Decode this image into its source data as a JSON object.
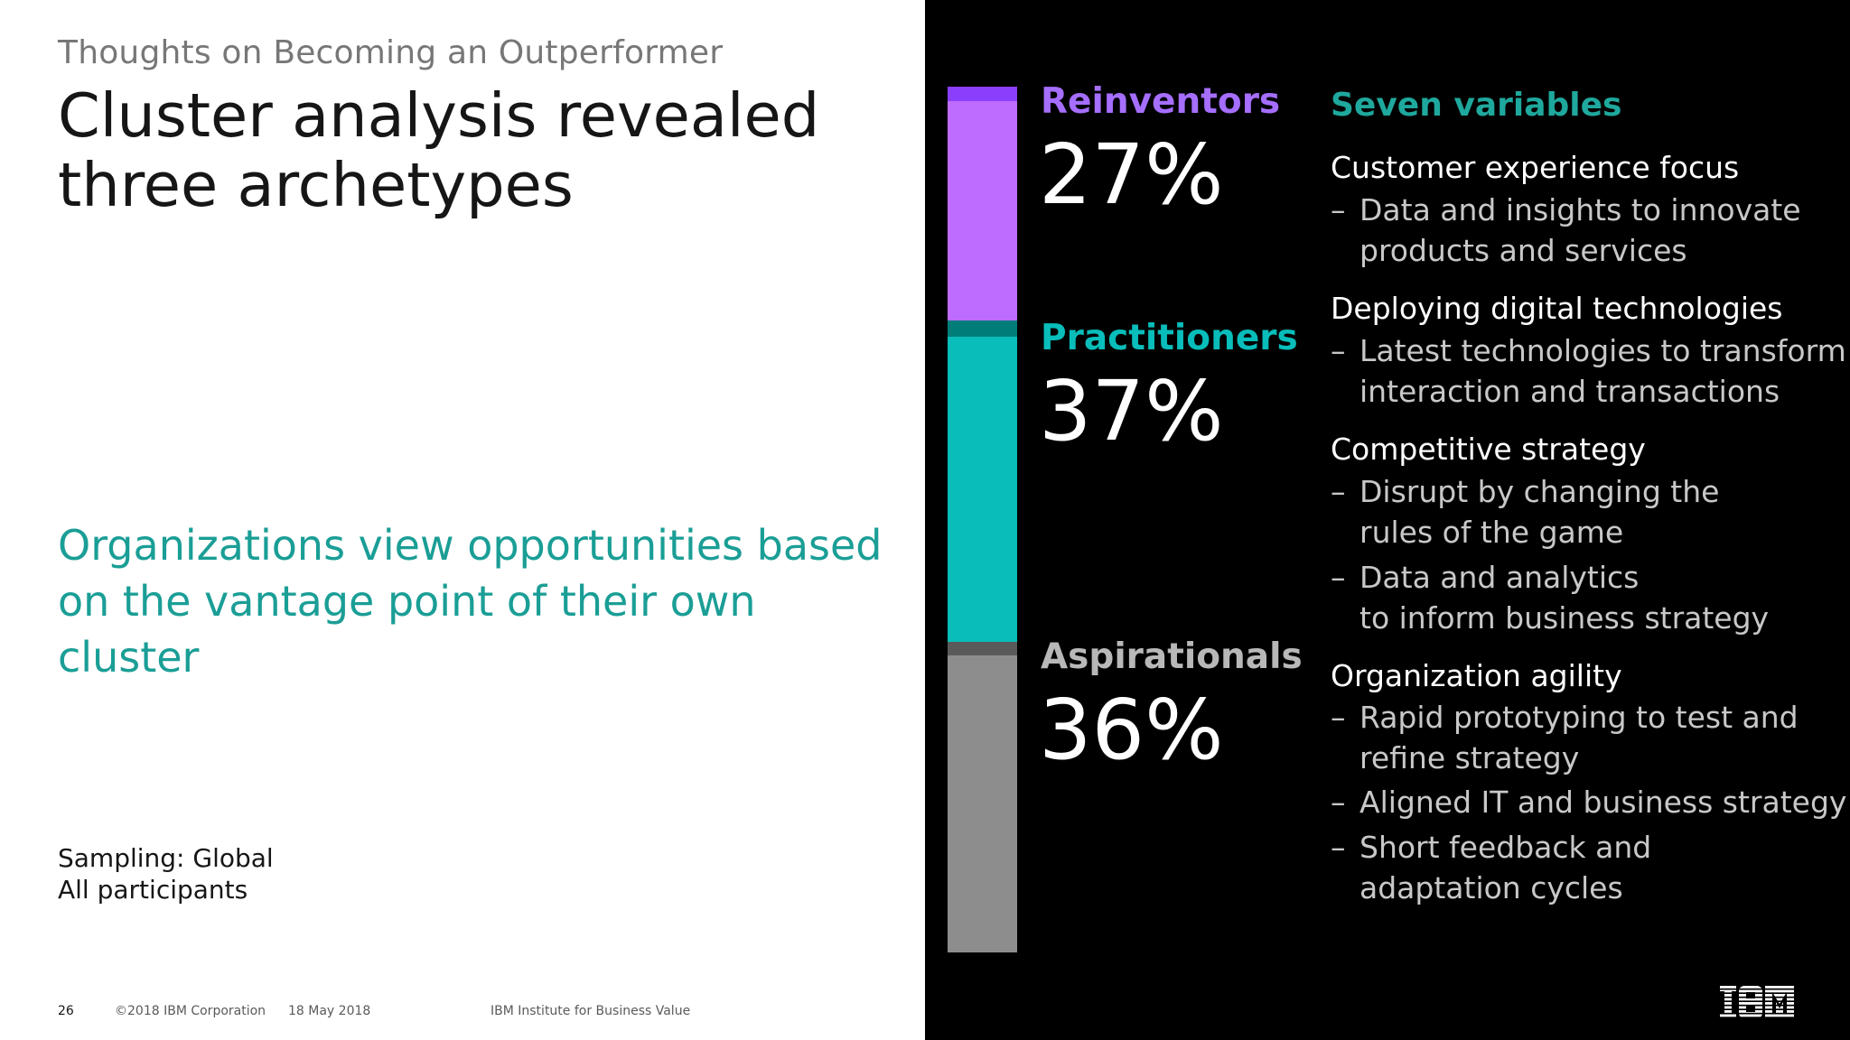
{
  "header": {
    "kicker": "Thoughts on Becoming an Outperformer",
    "title_line1": "Cluster analysis revealed",
    "title_line2": "three archetypes"
  },
  "subtitle": {
    "line1": "Organizations view opportunities based",
    "line2": "on the vantage point of their own cluster"
  },
  "sampling": {
    "line1": "Sampling: Global",
    "line2": "All participants"
  },
  "footer": {
    "page": "26",
    "copyright": "©2018 IBM Corporation",
    "date": "18 May 2018",
    "source": "IBM Institute for Business Value"
  },
  "clusters": [
    {
      "name": "Reinventors",
      "percent": "27%",
      "value": 27,
      "color": "#be6cff",
      "cap_color": "#8a3ffc",
      "label_color": "#a56eff"
    },
    {
      "name": "Practitioners",
      "percent": "37%",
      "value": 37,
      "color": "#08bdba",
      "cap_color": "#007d79",
      "label_color": "#08bdba"
    },
    {
      "name": "Aspirationals",
      "percent": "36%",
      "value": 36,
      "color": "#8d8d8d",
      "cap_color": "#5a5a5a",
      "label_color": "#b8b8b8"
    }
  ],
  "variables": {
    "title": "Seven variables",
    "groups": [
      {
        "heading": "Customer experience focus",
        "items": [
          [
            "Data and insights to innovate",
            "products and services"
          ]
        ]
      },
      {
        "heading": "Deploying digital technologies",
        "items": [
          [
            "Latest technologies to transform",
            "interaction and transactions"
          ]
        ]
      },
      {
        "heading": "Competitive strategy",
        "items": [
          [
            "Disrupt by changing the",
            "rules of the game"
          ],
          [
            "Data and analytics",
            "to inform business strategy"
          ]
        ]
      },
      {
        "heading": "Organization agility",
        "items": [
          [
            "Rapid prototyping to test and",
            "refine strategy"
          ],
          [
            "Aligned IT and business strategy"
          ],
          [
            "Short feedback and",
            "adaptation cycles"
          ]
        ]
      }
    ],
    "dash": "–"
  },
  "logo": {
    "text": "IBM",
    "icon": "ibm-logo"
  }
}
